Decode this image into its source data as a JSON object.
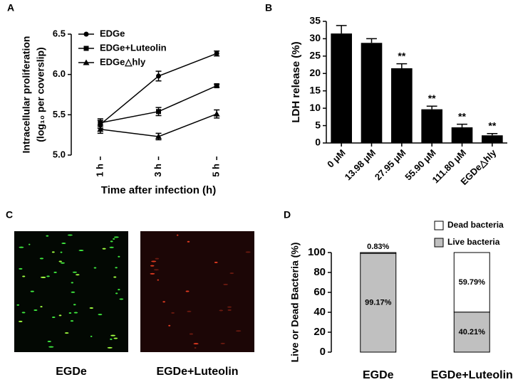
{
  "chart_data": [
    {
      "type": "line",
      "panel_label": "A",
      "title": null,
      "ylabel": [
        "Intracellular proliferation",
        "(log₁₀ per coverslip)"
      ],
      "xlabel": "Time after infection (h)",
      "categories": [
        "1 h",
        "3 h",
        "5 h"
      ],
      "series": [
        {
          "name": "EDGe",
          "color": "#000000",
          "marker": "circle",
          "values": [
            5.38,
            5.98,
            6.26
          ],
          "errors": [
            0.05,
            0.06,
            0.03
          ]
        },
        {
          "name": "EDGe+Luteolin",
          "color": "#000000",
          "marker": "square",
          "values": [
            5.4,
            5.54,
            5.86
          ],
          "errors": [
            0.05,
            0.05,
            0.02
          ]
        },
        {
          "name": "EDGe△hly",
          "color": "#000000",
          "marker": "triangle",
          "values": [
            5.32,
            5.23,
            5.51
          ],
          "errors": [
            0.05,
            0.04,
            0.05
          ]
        }
      ],
      "ylim": [
        5.0,
        6.5
      ],
      "yticks": [
        {
          "value": 5.0,
          "label": "5.0"
        },
        {
          "value": 5.5,
          "label": "5.5"
        },
        {
          "value": 6.0,
          "label": "6.0"
        },
        {
          "value": 6.5,
          "label": "6.5"
        }
      ],
      "legend": "upper left"
    },
    {
      "type": "bar",
      "panel_label": "B",
      "ylabel": "LDH release (%)",
      "categories": [
        "0 μM",
        "13.98 μM",
        "27.95 μM",
        "55.90 μM",
        "111.80 μM",
        "EGDe△hly"
      ],
      "values": [
        31.5,
        28.8,
        21.5,
        9.7,
        4.5,
        2.2
      ],
      "errors": [
        2.3,
        1.2,
        1.3,
        0.9,
        0.9,
        0.5
      ],
      "annotations": [
        null,
        null,
        "**",
        "**",
        "**",
        "**"
      ],
      "color": "#000000",
      "ylim": [
        0,
        35
      ],
      "yticks": [
        0,
        5,
        10,
        15,
        20,
        25,
        30,
        35
      ]
    },
    {
      "type": "image",
      "panel_label": "C",
      "categories": [
        "EGDe",
        "EGDe+Luteolin"
      ]
    },
    {
      "type": "stacked_bar",
      "panel_label": "D",
      "ylabel": "Live or Dead Bacteria (%)",
      "categories": [
        "EGDe",
        "EGDe+Luteolin"
      ],
      "series": [
        {
          "name": "Live bacteria",
          "color": "#c0c0c0",
          "values": [
            99.17,
            40.21
          ],
          "value_labels": [
            "99.17%",
            "40.21%"
          ]
        },
        {
          "name": "Dead bacteria",
          "color": "#ffffff",
          "values": [
            0.83,
            59.79
          ],
          "value_labels": [
            "0.83%",
            "59.79%"
          ]
        }
      ],
      "ylim": [
        0,
        100
      ],
      "yticks": [
        0,
        20,
        40,
        60,
        80,
        100
      ],
      "legend": "upper right"
    }
  ]
}
